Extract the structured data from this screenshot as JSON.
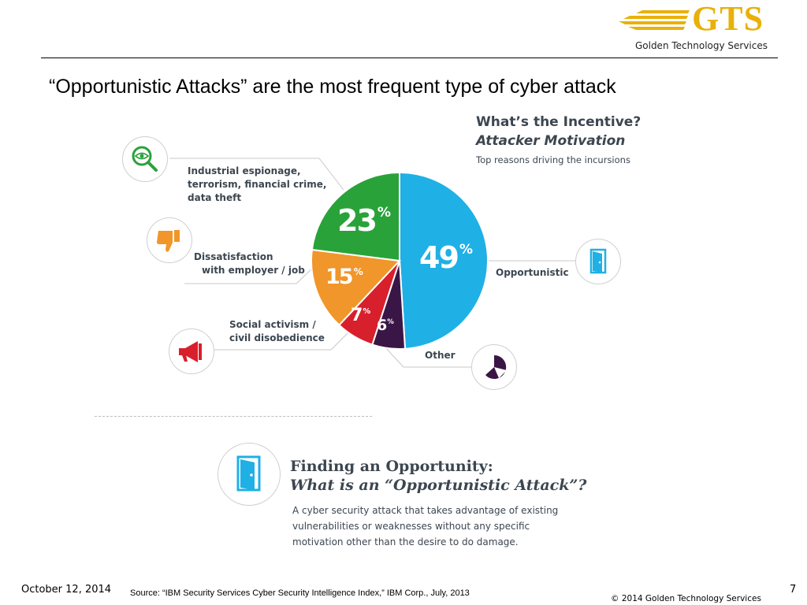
{
  "header": {
    "logo_text": "GTS",
    "logo_subtitle": "Golden Technology Services",
    "slide_title": "“Opportunistic Attacks” are the most frequent type of cyber attack"
  },
  "colors": {
    "opportunistic": "#1fb0e6",
    "industrial": "#2aa23a",
    "dissatisfaction": "#f0962a",
    "social": "#d81f2c",
    "other": "#3a1646",
    "text_dark": "#3c4650",
    "logo_gold": "#e8b10a"
  },
  "chart_data": {
    "type": "pie",
    "title": "What’s the Incentive?",
    "subtitle": "Attacker Motivation",
    "caption": "Top reasons driving the incursions",
    "slices": [
      {
        "label": "Opportunistic",
        "value": 49,
        "display": "49",
        "color": "#1fb0e6",
        "icon": "door-icon"
      },
      {
        "label": "Other",
        "value": 6,
        "display": "6",
        "color": "#3a1646",
        "icon": "pie-chart-icon"
      },
      {
        "label": "Social activism / civil disobedience",
        "value": 7,
        "display": "7",
        "color": "#d81f2c",
        "icon": "megaphone-icon"
      },
      {
        "label": "Dissatisfaction with employer / job",
        "value": 15,
        "display": "15",
        "color": "#f0962a",
        "icon": "thumbs-down-icon"
      },
      {
        "label": "Industrial espionage, terrorism, financial crime, data theft",
        "value": 23,
        "display": "23",
        "color": "#2aa23a",
        "icon": "magnifier-eye-icon"
      }
    ],
    "legend": "none"
  },
  "labels": {
    "industrial": [
      "Industrial espionage,",
      "terrorism,  financial crime,",
      "data theft"
    ],
    "dissatisfaction": [
      "Dissatisfaction",
      "with employer / job"
    ],
    "social": [
      "Social activism /",
      "civil disobedience"
    ],
    "opportunistic": "Opportunistic",
    "other": "Other",
    "pct_sign": "%"
  },
  "finding": {
    "heading1": "Finding an Opportunity:",
    "heading2": "What is an “Opportunistic Attack”?",
    "body": "A cyber security attack that takes advantage of existing vulnerabilities or weaknesses without any specific motivation other than the desire to do damage."
  },
  "footer": {
    "date": "October 12, 2014",
    "source": "Source: “IBM Security Services Cyber Security Intelligence Index,” IBM Corp., July, 2013",
    "page_number": "7",
    "copyright": "© 2014 Golden Technology Services"
  }
}
